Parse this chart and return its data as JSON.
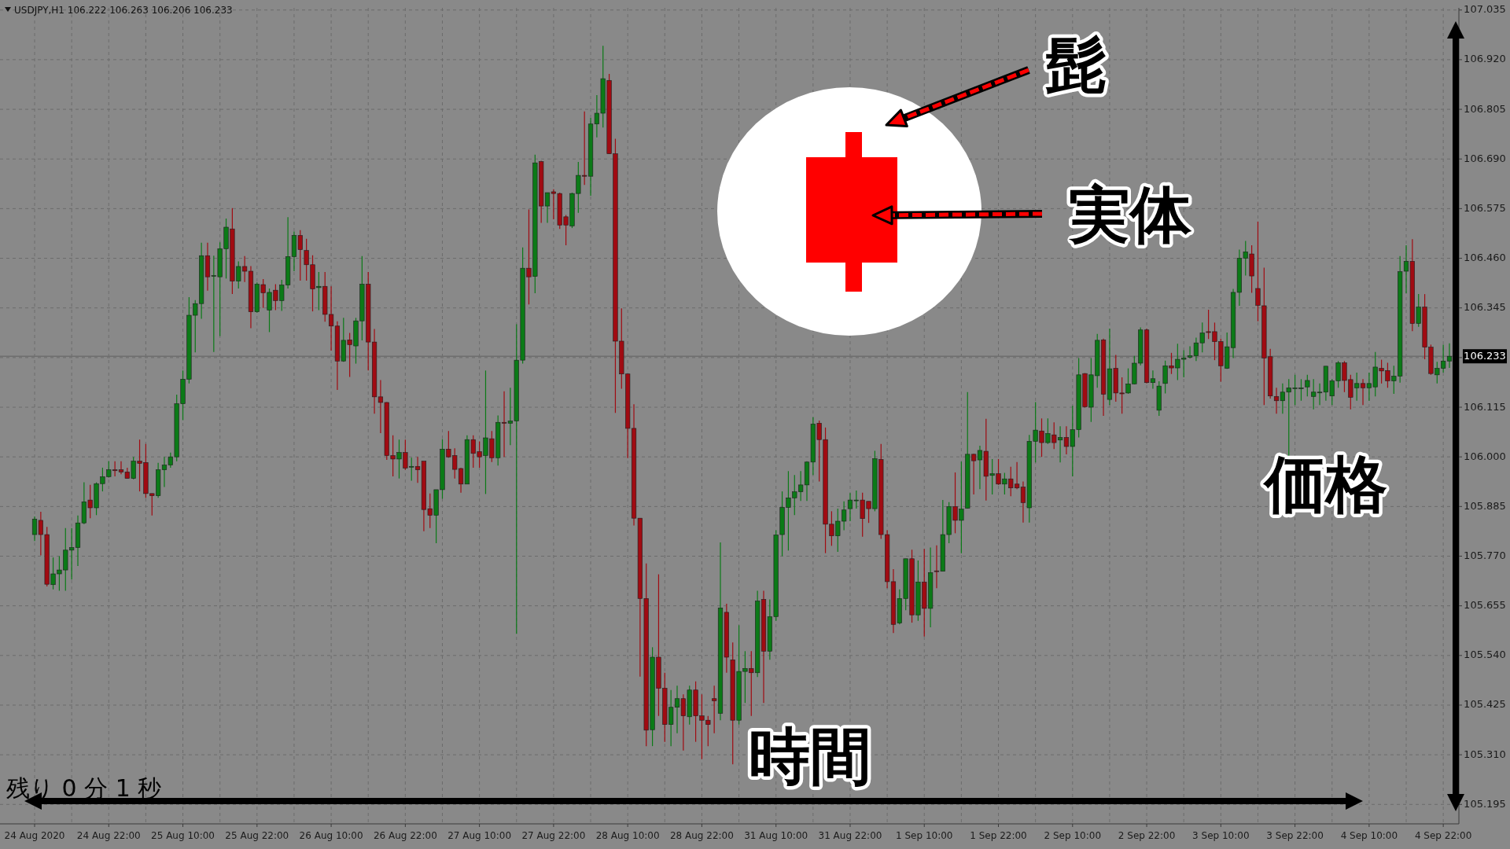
{
  "chart_data": {
    "type": "candlestick",
    "title": "USDJPY,H1 106.222 106.263 106.206 106.233",
    "annotations": [
      "髭",
      "実体",
      "時間",
      "価格",
      "残り 0 分 1 秒"
    ],
    "colors": [
      "#0b7a17",
      "#a00b12",
      "#a00b12",
      "#0b7a17",
      "#0b7a17",
      "#0b7a17",
      "#0b7a17",
      "#0b7a17",
      "#0b7a17",
      "#a00b12",
      "#0b7a17",
      "#0b7a17",
      "#0b7a17",
      "#a00b12",
      "#a00b12",
      "#a00b12",
      "#0b7a17",
      "#a00b12",
      "#a00b12",
      "#a00b12",
      "#0b7a17",
      "#0b7a17",
      "#0b7a17",
      "#0b7a17",
      "#0b7a17",
      "#0b7a17",
      "#0b7a17",
      "#0b7a17",
      "#a00b12",
      "#0b7a17",
      "#0b7a17",
      "#0b7a17",
      "#a00b12",
      "#0b7a17",
      "#a00b12",
      "#a00b12",
      "#0b7a17",
      "#a00b12",
      "#0b7a17",
      "#a00b12",
      "#0b7a17",
      "#0b7a17",
      "#0b7a17",
      "#a00b12",
      "#a00b12",
      "#a00b12",
      "#0b7a17",
      "#a00b12",
      "#a00b12",
      "#a00b12",
      "#0b7a17",
      "#a00b12",
      "#0b7a17",
      "#0b7a17",
      "#a00b12",
      "#a00b12",
      "#a00b12",
      "#a00b12",
      "#a00b12",
      "#0b7a17",
      "#a00b12",
      "#0b7a17",
      "#a00b12",
      "#a00b12",
      "#a00b12",
      "#0b7a17",
      "#0b7a17",
      "#a00b12",
      "#a00b12",
      "#a00b12",
      "#0b7a17",
      "#a00b12",
      "#a00b12",
      "#0b7a17",
      "#a00b12",
      "#0b7a17",
      "#a00b12",
      "#0b7a17",
      "#0b7a17",
      "#0b7a17",
      "#a00b12",
      "#0b7a17",
      "#a00b12",
      "#0b7a17",
      "#a00b12",
      "#a00b12",
      "#a00b12",
      "#0b7a17",
      "#0b7a17",
      "#a00b12",
      "#0b7a17",
      "#0b7a17",
      "#0b7a17",
      "#a00b12",
      "#a00b12",
      "#a00b12",
      "#a00b12",
      "#a00b12",
      "#a00b12",
      "#a00b12",
      "#0b7a17",
      "#a00b12",
      "#a00b12",
      "#0b7a17",
      "#0b7a17",
      "#a00b12",
      "#0b7a17",
      "#a00b12",
      "#a00b12",
      "#a00b12",
      "#a00b12",
      "#0b7a17",
      "#a00b12",
      "#a00b12",
      "#0b7a17",
      "#0b7a17",
      "#a00b12",
      "#0b7a17",
      "#a00b12",
      "#0b7a17",
      "#0b7a17",
      "#0b7a17",
      "#0b7a17",
      "#0b7a17",
      "#0b7a17",
      "#0b7a17",
      "#0b7a17",
      "#a00b12",
      "#a00b12",
      "#a00b12",
      "#0b7a17",
      "#0b7a17",
      "#0b7a17",
      "#0b7a17",
      "#a00b12",
      "#a00b12",
      "#0b7a17",
      "#a00b12",
      "#a00b12",
      "#a00b12",
      "#0b7a17",
      "#0b7a17",
      "#a00b12",
      "#0b7a17",
      "#a00b12",
      "#0b7a17",
      "#a00b12",
      "#0b7a17",
      "#0b7a17",
      "#a00b12",
      "#0b7a17",
      "#0b7a17",
      "#a00b12",
      "#0b7a17",
      "#a00b12",
      "#0b7a17",
      "#a00b12",
      "#0b7a17",
      "#a00b12",
      "#a00b12",
      "#a00b12",
      "#0b7a17",
      "#0b7a17",
      "#a00b12",
      "#0b7a17",
      "#a00b12",
      "#0b7a17",
      "#a00b12",
      "#0b7a17",
      "#0b7a17",
      "#a00b12",
      "#0b7a17",
      "#0b7a17",
      "#a00b12",
      "#0b7a17",
      "#a00b12",
      "#a00b12",
      "#0b7a17",
      "#0b7a17",
      "#0b7a17",
      "#a00b12",
      "#0b7a17",
      "#0b7a17",
      "#0b7a17",
      "#a00b12",
      "#0b7a17",
      "#0b7a17",
      "#0b7a17",
      "#0b7a17",
      "#0b7a17",
      "#a00b12",
      "#a00b12",
      "#a00b12",
      "#0b7a17",
      "#0b7a17",
      "#0b7a17",
      "#0b7a17",
      "#a00b12",
      "#a00b12",
      "#a00b12",
      "#a00b12",
      "#a00b12",
      "#0b7a17",
      "#0b7a17",
      "#0b7a17",
      "#0b7a17",
      "#0b7a17",
      "#0b7a17",
      "#0b7a17",
      "#0b7a17",
      "#0b7a17",
      "#0b7a17",
      "#a00b12",
      "#a00b12",
      "#0b7a17",
      "#a00b12",
      "#0b7a17",
      "#0b7a17",
      "#a00b12",
      "#a00b12",
      "#0b7a17",
      "#0b7a17",
      "#0b7a17",
      "#a00b12",
      "#0b7a17",
      "#a00b12",
      "#a00b12",
      "#0b7a17",
      "#0b7a17",
      "#0b7a17"
    ],
    "grid": true,
    "ylim": [
      105.15,
      107.04
    ],
    "yticks": [
      105.195,
      {
        "value": 105.31,
        "label": "105.310"
      },
      105.425,
      {
        "value": 105.54,
        "label": "105.540"
      },
      105.655,
      {
        "value": 105.77,
        "label": "105.770"
      },
      105.885,
      {
        "value": 106,
        "label": "106.000"
      },
      106.115,
      {
        "value": 106.23,
        "label": null
      },
      106.345,
      {
        "value": 106.46,
        "label": "106.460"
      },
      106.575,
      {
        "value": 106.69,
        "label": "106.690"
      },
      106.805,
      {
        "value": 106.92,
        "label": "106.920"
      },
      107.035
    ],
    "ref_lines": [
      {
        "axis": "y",
        "value": 106.233,
        "label": "106.233",
        "color": "#6f6f6f"
      }
    ],
    "categories": [
      "24 Aug 2020",
      null,
      null,
      null,
      null,
      null,
      null,
      null,
      null,
      null,
      null,
      null,
      "24 Aug 22:00",
      null,
      null,
      null,
      null,
      null,
      null,
      null,
      null,
      null,
      null,
      null,
      "25 Aug 10:00",
      null,
      null,
      null,
      null,
      null,
      null,
      null,
      null,
      null,
      null,
      null,
      "25 Aug 22:00",
      null,
      null,
      null,
      null,
      null,
      null,
      null,
      null,
      null,
      null,
      null,
      "26 Aug 10:00",
      null,
      null,
      null,
      null,
      null,
      null,
      null,
      null,
      null,
      null,
      null,
      "26 Aug 22:00",
      null,
      null,
      null,
      null,
      null,
      null,
      null,
      null,
      null,
      null,
      null,
      "27 Aug 10:00",
      null,
      null,
      null,
      null,
      null,
      null,
      null,
      null,
      null,
      null,
      null,
      "27 Aug 22:00",
      null,
      null,
      null,
      null,
      null,
      null,
      null,
      null,
      null,
      null,
      null,
      "28 Aug 10:00",
      null,
      null,
      null,
      null,
      null,
      null,
      null,
      null,
      null,
      null,
      null,
      "28 Aug 22:00",
      null,
      null,
      null,
      null,
      null,
      null,
      null,
      null,
      null,
      null,
      null,
      "31 Aug 10:00",
      null,
      null,
      null,
      null,
      null,
      null,
      null,
      null,
      null,
      null,
      null,
      "31 Aug 22:00",
      null,
      null,
      null,
      null,
      null,
      null,
      null,
      null,
      null,
      null,
      null,
      "1 Sep 10:00",
      null,
      null,
      null,
      null,
      null,
      null,
      null,
      null,
      null,
      null,
      null,
      "1 Sep 22:00",
      null,
      null,
      null,
      null,
      null,
      null,
      null,
      null,
      null,
      null,
      null,
      "2 Sep 10:00",
      null,
      null,
      null,
      null,
      null,
      null,
      null,
      null,
      null,
      null,
      null,
      "2 Sep 22:00",
      null,
      null,
      null,
      null,
      null,
      null,
      null,
      null,
      null,
      null,
      null,
      "3 Sep 10:00",
      null,
      null,
      null,
      null,
      null,
      null,
      null,
      null,
      null,
      null,
      null,
      "3 Sep 22:00",
      null,
      null,
      null,
      null,
      null,
      null,
      null,
      null,
      null,
      null,
      null,
      "4 Sep 10:00",
      null,
      null,
      null,
      null,
      null,
      null,
      null,
      null,
      null,
      null,
      null,
      "4 Sep 22:00",
      null
    ],
    "ohlc": [
      [
        105.82,
        105.862,
        105.805,
        105.856
      ],
      [
        105.853,
        105.873,
        105.772,
        105.82
      ],
      [
        105.82,
        105.838,
        105.7,
        105.705
      ],
      [
        105.704,
        105.767,
        105.693,
        105.729
      ],
      [
        105.729,
        105.77,
        105.69,
        105.738
      ],
      [
        105.738,
        105.835,
        105.69,
        105.784
      ],
      [
        105.784,
        105.835,
        105.716,
        105.79
      ],
      [
        105.79,
        105.864,
        105.747,
        105.847
      ],
      [
        105.847,
        105.941,
        105.844,
        105.896
      ],
      [
        105.9,
        105.935,
        105.858,
        105.882
      ],
      [
        105.882,
        105.941,
        105.865,
        105.938
      ],
      [
        105.938,
        105.975,
        105.92,
        105.954
      ],
      [
        105.954,
        105.99,
        105.952,
        105.97
      ],
      [
        105.97,
        105.99,
        105.955,
        105.968
      ],
      [
        105.97,
        105.99,
        105.96,
        105.965
      ],
      [
        105.965,
        105.975,
        105.95,
        105.95
      ],
      [
        105.95,
        106.0,
        105.948,
        105.99
      ],
      [
        105.99,
        106.04,
        105.92,
        105.985
      ],
      [
        105.987,
        106.03,
        105.905,
        105.915
      ],
      [
        105.915,
        105.915,
        105.864,
        105.91
      ],
      [
        105.91,
        105.986,
        105.905,
        105.97
      ],
      [
        105.97,
        106.0,
        105.93,
        105.981
      ],
      [
        105.981,
        106.01,
        105.975,
        106.0
      ],
      [
        106.0,
        106.144,
        105.99,
        106.123
      ],
      [
        106.123,
        106.2,
        106.085,
        106.18
      ],
      [
        106.18,
        106.37,
        106.17,
        106.328
      ],
      [
        106.328,
        106.363,
        106.242,
        106.355
      ],
      [
        106.355,
        106.496,
        106.32,
        106.466
      ],
      [
        106.466,
        106.496,
        106.385,
        106.417
      ],
      [
        106.42,
        106.466,
        106.243,
        106.42
      ],
      [
        106.417,
        106.497,
        106.28,
        106.482
      ],
      [
        106.482,
        106.552,
        106.413,
        106.532
      ],
      [
        106.528,
        106.576,
        106.377,
        106.407
      ],
      [
        106.407,
        106.453,
        106.39,
        106.441
      ],
      [
        106.441,
        106.465,
        106.405,
        106.43
      ],
      [
        106.43,
        106.442,
        106.298,
        106.336
      ],
      [
        106.336,
        106.404,
        106.334,
        106.4
      ],
      [
        106.399,
        106.412,
        106.345,
        106.38
      ],
      [
        106.34,
        106.39,
        106.289,
        106.381
      ],
      [
        106.386,
        106.4,
        106.34,
        106.362
      ],
      [
        106.362,
        106.41,
        106.338,
        106.398
      ],
      [
        106.398,
        106.555,
        106.39,
        106.464
      ],
      [
        106.464,
        106.522,
        106.43,
        106.513
      ],
      [
        106.513,
        106.525,
        106.408,
        106.48
      ],
      [
        106.478,
        106.505,
        106.408,
        106.445
      ],
      [
        106.445,
        106.467,
        106.337,
        106.389
      ],
      [
        106.392,
        106.428,
        106.34,
        106.395
      ],
      [
        106.395,
        106.428,
        106.313,
        106.33
      ],
      [
        106.33,
        106.395,
        106.246,
        106.303
      ],
      [
        106.303,
        106.314,
        106.155,
        106.222
      ],
      [
        106.222,
        106.322,
        106.22,
        106.27
      ],
      [
        106.271,
        106.287,
        106.185,
        106.26
      ],
      [
        106.257,
        106.322,
        106.216,
        106.315
      ],
      [
        106.315,
        106.465,
        106.27,
        106.4
      ],
      [
        106.4,
        106.428,
        106.2,
        106.266
      ],
      [
        106.266,
        106.296,
        106.1,
        106.139
      ],
      [
        106.139,
        106.178,
        106.055,
        106.126
      ],
      [
        106.126,
        106.127,
        105.993,
        106.003
      ],
      [
        106.003,
        106.05,
        105.955,
        105.995
      ],
      [
        105.995,
        106.04,
        105.95,
        106.01
      ],
      [
        106.01,
        106.04,
        105.97,
        105.974
      ],
      [
        105.978,
        105.998,
        105.945,
        105.978
      ],
      [
        105.978,
        106.0,
        105.94,
        105.97
      ],
      [
        105.99,
        105.99,
        105.828,
        105.878
      ],
      [
        105.88,
        105.915,
        105.835,
        105.865
      ],
      [
        105.865,
        105.924,
        105.8,
        105.924
      ],
      [
        105.924,
        106.041,
        105.903,
        106.018
      ],
      [
        106.018,
        106.06,
        105.998,
        106.0
      ],
      [
        106.003,
        106.02,
        105.95,
        105.971
      ],
      [
        105.973,
        105.975,
        105.917,
        105.937
      ],
      [
        105.937,
        106.05,
        105.937,
        106.04
      ],
      [
        106.04,
        106.05,
        105.975,
        106.008
      ],
      [
        106.012,
        106.036,
        105.975,
        106.0
      ],
      [
        106.003,
        106.2,
        105.914,
        106.044
      ],
      [
        106.042,
        106.06,
        105.988,
        105.998
      ],
      [
        105.998,
        106.096,
        105.98,
        106.08
      ],
      [
        106.08,
        106.152,
        106.0,
        106.078
      ],
      [
        106.078,
        106.16,
        106.027,
        106.083
      ],
      [
        106.083,
        106.307,
        105.59,
        106.224
      ],
      [
        106.224,
        106.485,
        106.216,
        106.437
      ],
      [
        106.437,
        106.573,
        106.353,
        106.417
      ],
      [
        106.418,
        106.7,
        106.379,
        106.681
      ],
      [
        106.684,
        106.686,
        106.542,
        106.581
      ],
      [
        106.581,
        106.612,
        106.542,
        106.612
      ],
      [
        106.614,
        106.62,
        106.55,
        106.61
      ],
      [
        106.61,
        106.612,
        106.528,
        106.537
      ],
      [
        106.556,
        106.56,
        106.49,
        106.537
      ],
      [
        106.535,
        106.612,
        106.53,
        106.61
      ],
      [
        106.61,
        106.683,
        106.565,
        106.652
      ],
      [
        106.652,
        106.8,
        106.63,
        106.65
      ],
      [
        106.65,
        106.785,
        106.605,
        106.771
      ],
      [
        106.771,
        106.838,
        106.74,
        106.796
      ],
      [
        106.796,
        106.952,
        106.763,
        106.876
      ],
      [
        106.872,
        106.887,
        106.702,
        106.702
      ],
      [
        106.702,
        106.737,
        106.102,
        106.268
      ],
      [
        106.268,
        106.344,
        106.158,
        106.192
      ],
      [
        106.192,
        106.192,
        105.997,
        106.066
      ],
      [
        106.066,
        106.122,
        105.841,
        105.858
      ],
      [
        105.858,
        105.858,
        105.491,
        105.672
      ],
      [
        105.672,
        105.753,
        105.33,
        105.367
      ],
      [
        105.368,
        105.559,
        105.33,
        105.536
      ],
      [
        105.536,
        105.728,
        105.4,
        105.464
      ],
      [
        105.464,
        105.5,
        105.34,
        105.38
      ],
      [
        105.38,
        105.46,
        105.33,
        105.42
      ],
      [
        105.42,
        105.47,
        105.36,
        105.44
      ],
      [
        105.44,
        105.45,
        105.32,
        105.4
      ],
      [
        105.398,
        105.47,
        105.38,
        105.46
      ],
      [
        105.46,
        105.48,
        105.34,
        105.4
      ],
      [
        105.4,
        105.45,
        105.3,
        105.39
      ],
      [
        105.39,
        105.4,
        105.33,
        105.38
      ],
      [
        105.44,
        105.47,
        105.36,
        105.435
      ],
      [
        105.406,
        105.802,
        105.39,
        105.65
      ],
      [
        105.64,
        105.66,
        105.5,
        105.536
      ],
      [
        105.53,
        105.57,
        105.288,
        105.39
      ],
      [
        105.39,
        105.61,
        105.38,
        105.503
      ],
      [
        105.503,
        105.55,
        105.43,
        105.51
      ],
      [
        105.51,
        105.55,
        105.4,
        105.5
      ],
      [
        105.5,
        105.69,
        105.49,
        105.666
      ],
      [
        105.67,
        105.69,
        105.43,
        105.55
      ],
      [
        105.55,
        105.67,
        105.53,
        105.63
      ],
      [
        105.63,
        105.83,
        105.62,
        105.819
      ],
      [
        105.82,
        105.92,
        105.77,
        105.883
      ],
      [
        105.883,
        105.967,
        105.783,
        105.905
      ],
      [
        105.905,
        105.958,
        105.865,
        105.919
      ],
      [
        105.919,
        105.967,
        105.898,
        105.935
      ],
      [
        105.935,
        105.99,
        105.898,
        105.988
      ],
      [
        105.988,
        106.092,
        105.958,
        106.076
      ],
      [
        106.078,
        106.084,
        105.943,
        106.04
      ],
      [
        106.04,
        106.068,
        105.777,
        105.844
      ],
      [
        105.844,
        105.874,
        105.794,
        105.817
      ],
      [
        105.817,
        105.88,
        105.78,
        105.851
      ],
      [
        105.851,
        105.897,
        105.83,
        105.877
      ],
      [
        105.88,
        105.916,
        105.851,
        105.9
      ],
      [
        105.9,
        105.922,
        105.88,
        105.9
      ],
      [
        105.9,
        105.917,
        105.815,
        105.857
      ],
      [
        105.897,
        105.897,
        105.847,
        105.88
      ],
      [
        105.88,
        106.014,
        105.874,
        105.996
      ],
      [
        105.994,
        106.03,
        105.81,
        105.82
      ],
      [
        105.82,
        105.83,
        105.696,
        105.711
      ],
      [
        105.711,
        105.74,
        105.592,
        105.612
      ],
      [
        105.615,
        105.693,
        105.612,
        105.672
      ],
      [
        105.672,
        105.764,
        105.645,
        105.764
      ],
      [
        105.764,
        105.785,
        105.616,
        105.634
      ],
      [
        105.634,
        105.76,
        105.62,
        105.71
      ],
      [
        105.71,
        105.787,
        105.584,
        105.649
      ],
      [
        105.649,
        105.79,
        105.605,
        105.732
      ],
      [
        105.736,
        105.795,
        105.696,
        105.735
      ],
      [
        105.735,
        105.9,
        105.735,
        105.82
      ],
      [
        105.82,
        105.895,
        105.8,
        105.885
      ],
      [
        105.885,
        105.964,
        105.823,
        105.853
      ],
      [
        105.853,
        105.989,
        105.777,
        105.879
      ],
      [
        105.881,
        106.15,
        105.88,
        106.006
      ],
      [
        106.006,
        106.007,
        105.913,
        105.991
      ],
      [
        105.993,
        106.026,
        105.925,
        106.015
      ],
      [
        106.013,
        106.088,
        105.899,
        105.955
      ],
      [
        105.957,
        105.995,
        105.913,
        105.961
      ],
      [
        105.961,
        105.995,
        105.935,
        105.937
      ],
      [
        105.937,
        105.963,
        105.913,
        105.949
      ],
      [
        105.949,
        105.977,
        105.909,
        105.928
      ],
      [
        105.937,
        105.988,
        105.925,
        105.928
      ],
      [
        105.93,
        105.943,
        105.848,
        105.894
      ],
      [
        105.882,
        106.051,
        105.848,
        106.036
      ],
      [
        106.036,
        106.127,
        105.987,
        106.062
      ],
      [
        106.06,
        106.089,
        106.0,
        106.033
      ],
      [
        106.033,
        106.089,
        106.03,
        106.054
      ],
      [
        106.051,
        106.08,
        106.018,
        106.033
      ],
      [
        106.039,
        106.071,
        105.987,
        106.045
      ],
      [
        106.045,
        106.071,
        106.006,
        106.024
      ],
      [
        106.024,
        106.118,
        105.955,
        106.063
      ],
      [
        106.063,
        106.229,
        106.045,
        106.19
      ],
      [
        106.193,
        106.194,
        106.114,
        106.116
      ],
      [
        106.115,
        106.229,
        106.081,
        106.19
      ],
      [
        106.188,
        106.285,
        106.16,
        106.27
      ],
      [
        106.271,
        106.274,
        106.095,
        106.145
      ],
      [
        106.133,
        106.297,
        106.12,
        106.204
      ],
      [
        106.205,
        106.236,
        106.128,
        106.148
      ],
      [
        106.148,
        106.184,
        106.1,
        106.146
      ],
      [
        106.148,
        106.205,
        106.146,
        106.169
      ],
      [
        106.169,
        106.234,
        106.168,
        106.217
      ],
      [
        106.217,
        106.3,
        106.212,
        106.294
      ],
      [
        106.294,
        106.297,
        106.17,
        106.172
      ],
      [
        106.172,
        106.2,
        106.158,
        106.181
      ],
      [
        106.108,
        106.175,
        106.095,
        106.164
      ],
      [
        106.17,
        106.223,
        106.147,
        106.211
      ],
      [
        106.211,
        106.241,
        106.192,
        106.206
      ],
      [
        106.206,
        106.262,
        106.178,
        106.226
      ],
      [
        106.226,
        106.247,
        106.184,
        106.229
      ],
      [
        106.231,
        106.256,
        106.228,
        106.234
      ],
      [
        106.234,
        106.276,
        106.222,
        106.264
      ],
      [
        106.264,
        106.311,
        106.242,
        106.287
      ],
      [
        106.29,
        106.341,
        106.273,
        106.288
      ],
      [
        106.29,
        106.311,
        106.224,
        106.267
      ],
      [
        106.267,
        106.274,
        106.174,
        106.211
      ],
      [
        106.205,
        106.288,
        106.204,
        106.255
      ],
      [
        106.253,
        106.389,
        106.229,
        106.381
      ],
      [
        106.381,
        106.48,
        106.35,
        106.46
      ],
      [
        106.46,
        106.5,
        106.42,
        106.475
      ],
      [
        106.47,
        106.49,
        106.38,
        106.419
      ],
      [
        106.39,
        106.545,
        106.314,
        106.351
      ],
      [
        106.35,
        106.438,
        106.12,
        106.229
      ],
      [
        106.232,
        106.25,
        106.135,
        106.141
      ],
      [
        106.14,
        106.16,
        106.1,
        106.13
      ],
      [
        106.13,
        106.17,
        106.1,
        106.15
      ],
      [
        106.15,
        106.18,
        106.0,
        106.16
      ],
      [
        106.16,
        106.19,
        106.12,
        106.16
      ],
      [
        106.16,
        106.18,
        106.13,
        106.16
      ],
      [
        106.162,
        106.19,
        106.14,
        106.177
      ],
      [
        106.14,
        106.18,
        106.11,
        106.15
      ],
      [
        106.15,
        106.17,
        106.12,
        106.15
      ],
      [
        106.15,
        106.21,
        106.13,
        106.21
      ],
      [
        106.141,
        106.18,
        106.12,
        106.176
      ],
      [
        106.176,
        106.222,
        106.16,
        106.218
      ],
      [
        106.218,
        106.222,
        106.15,
        106.177
      ],
      [
        106.179,
        106.19,
        106.11,
        106.138
      ],
      [
        106.16,
        106.195,
        106.13,
        106.17
      ],
      [
        106.17,
        106.18,
        106.12,
        106.16
      ],
      [
        106.16,
        106.195,
        106.13,
        106.17
      ],
      [
        106.162,
        106.243,
        106.14,
        106.208
      ],
      [
        106.205,
        106.225,
        106.17,
        106.199
      ],
      [
        106.2,
        106.218,
        106.16,
        106.176
      ],
      [
        106.176,
        106.211,
        106.146,
        106.187
      ],
      [
        106.187,
        106.465,
        106.172,
        106.429
      ],
      [
        106.43,
        106.49,
        106.379,
        106.453
      ],
      [
        106.453,
        106.504,
        106.291,
        106.309
      ],
      [
        106.309,
        106.377,
        106.301,
        106.347
      ],
      [
        106.347,
        106.377,
        106.226,
        106.254
      ],
      [
        106.254,
        106.26,
        106.19,
        106.193
      ],
      [
        106.19,
        106.22,
        106.17,
        106.205
      ],
      [
        106.205,
        106.26,
        106.195,
        106.222
      ],
      [
        106.222,
        106.263,
        106.206,
        106.233
      ]
    ]
  }
}
